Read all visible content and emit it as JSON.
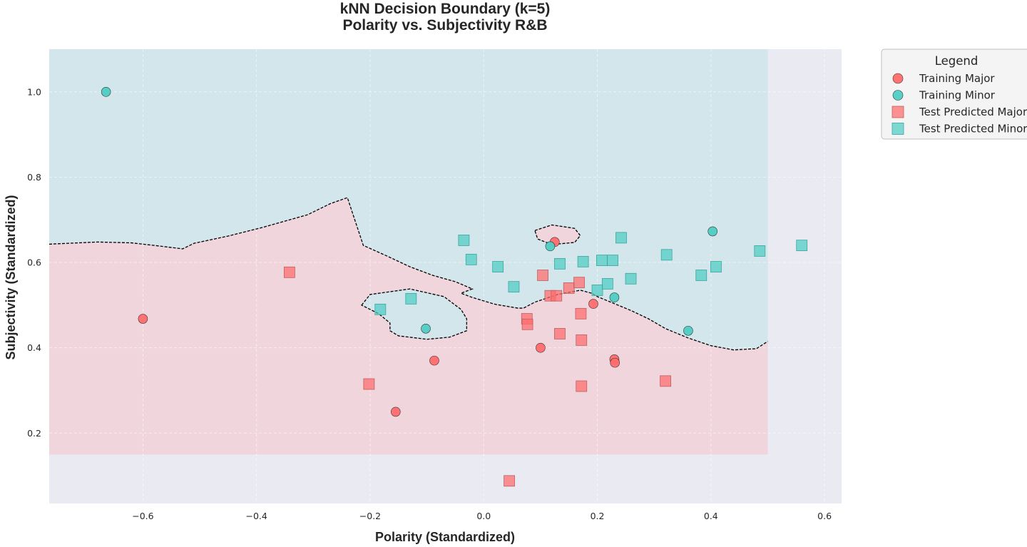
{
  "chart_data": {
    "type": "scatter",
    "title": [
      "kNN Decision Boundary (k=5)",
      "Polarity vs. Subjectivity R&B"
    ],
    "xlabel": "Polarity (Standardized)",
    "ylabel": "Subjectivity (Standardized)",
    "xlim": [
      -0.765,
      0.63
    ],
    "ylim": [
      0.035,
      1.1
    ],
    "xticks": [
      -0.6,
      -0.4,
      -0.2,
      0.0,
      0.2,
      0.4,
      0.6
    ],
    "xtick_labels": [
      "−0.6",
      "−0.4",
      "−0.2",
      "0.0",
      "0.2",
      "0.4",
      "0.6"
    ],
    "yticks": [
      0.2,
      0.4,
      0.6,
      0.8,
      1.0
    ],
    "ytick_labels": [
      "0.2",
      "0.4",
      "0.6",
      "0.8",
      "1.0"
    ],
    "grid": true,
    "legend_position": "outside-top-right",
    "colors": {
      "major": "#ff6b6b",
      "minor": "#4ecdc4",
      "region_major": "#f0d5dc",
      "region_minor": "#d2e6eb",
      "plot_background": "#eaeaf2",
      "boundary": "#000000"
    },
    "decision_regions": {
      "x_range": [
        -0.765,
        0.5
      ],
      "y_range": [
        0.15,
        1.1
      ],
      "boundary_x": [
        -0.765,
        -0.68,
        -0.62,
        -0.58,
        -0.53,
        -0.51,
        -0.45,
        -0.39,
        -0.31,
        -0.27,
        -0.24,
        -0.232,
        -0.212,
        -0.17,
        -0.13,
        -0.09,
        -0.05,
        -0.02,
        -0.04,
        -0.02,
        0.02,
        0.06,
        0.07,
        0.09,
        0.13,
        0.17,
        0.19,
        0.2,
        0.26,
        0.29,
        0.32,
        0.36,
        0.4,
        0.44,
        0.48,
        0.5
      ],
      "boundary_y": [
        0.643,
        0.648,
        0.646,
        0.64,
        0.632,
        0.645,
        0.662,
        0.682,
        0.712,
        0.738,
        0.752,
        0.72,
        0.64,
        0.615,
        0.59,
        0.57,
        0.555,
        0.538,
        0.528,
        0.518,
        0.502,
        0.493,
        0.493,
        0.507,
        0.525,
        0.535,
        0.528,
        0.52,
        0.487,
        0.468,
        0.445,
        0.423,
        0.405,
        0.395,
        0.398,
        0.415
      ],
      "islands": [
        {
          "class": "minor",
          "x": [
            -0.215,
            -0.2,
            -0.13,
            -0.07,
            -0.04,
            -0.03,
            -0.03,
            -0.06,
            -0.1,
            -0.15,
            -0.165,
            -0.165,
            -0.185,
            -0.215
          ],
          "y": [
            0.5,
            0.525,
            0.538,
            0.52,
            0.49,
            0.468,
            0.44,
            0.425,
            0.42,
            0.428,
            0.44,
            0.458,
            0.48,
            0.5
          ]
        },
        {
          "class": "major",
          "x": [
            0.09,
            0.12,
            0.16,
            0.17,
            0.16,
            0.12,
            0.095,
            0.09
          ],
          "y": [
            0.675,
            0.688,
            0.68,
            0.663,
            0.647,
            0.642,
            0.655,
            0.675
          ]
        }
      ]
    },
    "series": [
      {
        "name": "Training Major",
        "marker": "circle",
        "x": [
          -0.6,
          0.125,
          -0.087,
          -0.155,
          0.1,
          0.193,
          0.23,
          0.231
        ],
        "y": [
          0.468,
          0.648,
          0.37,
          0.25,
          0.4,
          0.503,
          0.373,
          0.365
        ]
      },
      {
        "name": "Training Minor",
        "marker": "circle",
        "x": [
          -0.665,
          0.117,
          -0.102,
          0.23,
          0.36,
          0.403
        ],
        "y": [
          1.0,
          0.638,
          0.445,
          0.518,
          0.44,
          0.673
        ]
      },
      {
        "name": "Test Predicted Major",
        "marker": "square",
        "x": [
          -0.342,
          -0.202,
          0.045,
          0.076,
          0.077,
          0.104,
          0.117,
          0.128,
          0.134,
          0.15,
          0.168,
          0.171,
          0.172,
          0.172,
          0.32
        ],
        "y": [
          0.577,
          0.315,
          0.088,
          0.468,
          0.455,
          0.57,
          0.522,
          0.522,
          0.433,
          0.54,
          0.553,
          0.48,
          0.418,
          0.31,
          0.322
        ]
      },
      {
        "name": "Test Predicted Minor",
        "marker": "square",
        "x": [
          -0.182,
          -0.128,
          -0.035,
          -0.022,
          0.025,
          0.053,
          0.134,
          0.175,
          0.2,
          0.208,
          0.218,
          0.227,
          0.242,
          0.259,
          0.322,
          0.383,
          0.409,
          0.486,
          0.56
        ],
        "y": [
          0.49,
          0.515,
          0.652,
          0.607,
          0.59,
          0.543,
          0.597,
          0.602,
          0.535,
          0.605,
          0.55,
          0.605,
          0.658,
          0.562,
          0.618,
          0.57,
          0.59,
          0.627,
          0.64
        ]
      }
    ]
  }
}
